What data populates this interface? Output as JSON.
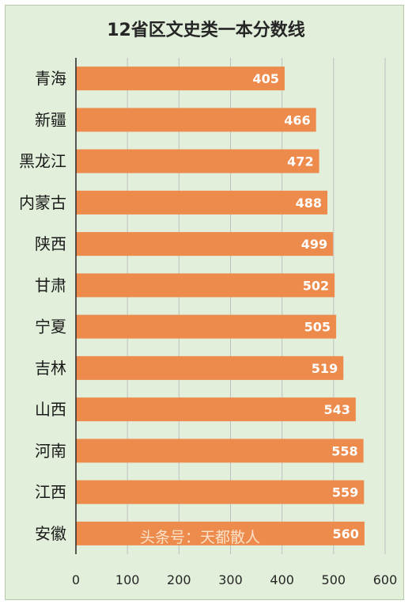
{
  "chart_data": {
    "type": "bar",
    "orientation": "horizontal",
    "title": "12省区文史类一本分数线",
    "categories": [
      "青海",
      "新疆",
      "黑龙江",
      "内蒙古",
      "陕西",
      "甘肃",
      "宁夏",
      "吉林",
      "山西",
      "河南",
      "江西",
      "安徽"
    ],
    "values": [
      405,
      466,
      472,
      488,
      499,
      502,
      505,
      519,
      543,
      558,
      559,
      560
    ],
    "xlim": [
      0,
      600
    ],
    "xticks": [
      0,
      100,
      200,
      300,
      400,
      500,
      600
    ],
    "grid": "vertical",
    "data_labels": true,
    "bar_color": "#ed8b4c",
    "label_color": "#ffffff",
    "background_color": "#e2efda",
    "grid_color": "#bfbfbf"
  },
  "watermark": "头条号：天都散人"
}
